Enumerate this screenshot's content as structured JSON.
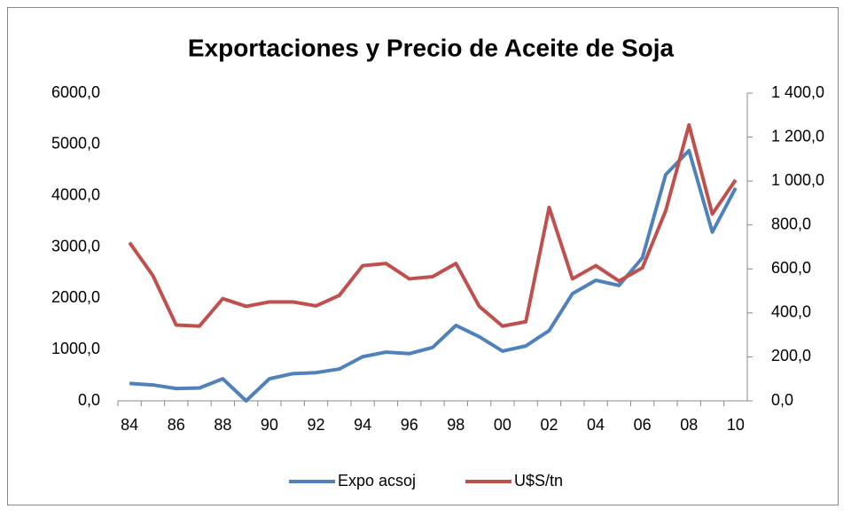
{
  "chart_data": {
    "type": "line",
    "title": "Exportaciones y Precio de Aceite de Soja",
    "categories": [
      "84",
      null,
      "86",
      null,
      "88",
      null,
      "90",
      null,
      "92",
      null,
      "94",
      null,
      "96",
      null,
      "98",
      null,
      "00",
      null,
      "02",
      null,
      "04",
      null,
      "06",
      null,
      "08",
      null,
      "10"
    ],
    "series": [
      {
        "name": "Expo acsoj",
        "color": "#4f81bd",
        "axis": "y",
        "values": [
          340,
          310,
          240,
          250,
          430,
          0,
          430,
          530,
          550,
          620,
          860,
          950,
          920,
          1040,
          1470,
          1250,
          970,
          1070,
          1370,
          2090,
          2350,
          2250,
          2790,
          4410,
          4880,
          3290,
          4150
        ]
      },
      {
        "name": "U$S/tn",
        "color": "#c0504d",
        "axis": "y2",
        "values": [
          720,
          570,
          345,
          340,
          465,
          430,
          450,
          450,
          432,
          480,
          615,
          625,
          555,
          565,
          625,
          430,
          340,
          360,
          880,
          555,
          615,
          545,
          605,
          865,
          1255,
          850,
          1005
        ]
      }
    ],
    "ylim": [
      0,
      6000
    ],
    "yticks": [
      {
        "value": 0,
        "label": "0,0"
      },
      {
        "value": 1000,
        "label": "1000,0"
      },
      {
        "value": 2000,
        "label": "2000,0"
      },
      {
        "value": 3000,
        "label": "3000,0"
      },
      {
        "value": 4000,
        "label": "4000,0"
      },
      {
        "value": 5000,
        "label": "5000,0"
      },
      {
        "value": 6000,
        "label": "6000,0"
      }
    ],
    "y2lim": [
      0,
      1400
    ],
    "y2ticks": [
      {
        "value": 0,
        "label": "0,0"
      },
      {
        "value": 200,
        "label": "200,0"
      },
      {
        "value": 400,
        "label": "400,0"
      },
      {
        "value": 600,
        "label": "600,0"
      },
      {
        "value": 800,
        "label": "800,0"
      },
      {
        "value": 1000,
        "label": "1 000,0"
      },
      {
        "value": 1200,
        "label": "1 200,0"
      },
      {
        "value": 1400,
        "label": "1 400,0"
      }
    ],
    "legend": "bottom"
  }
}
